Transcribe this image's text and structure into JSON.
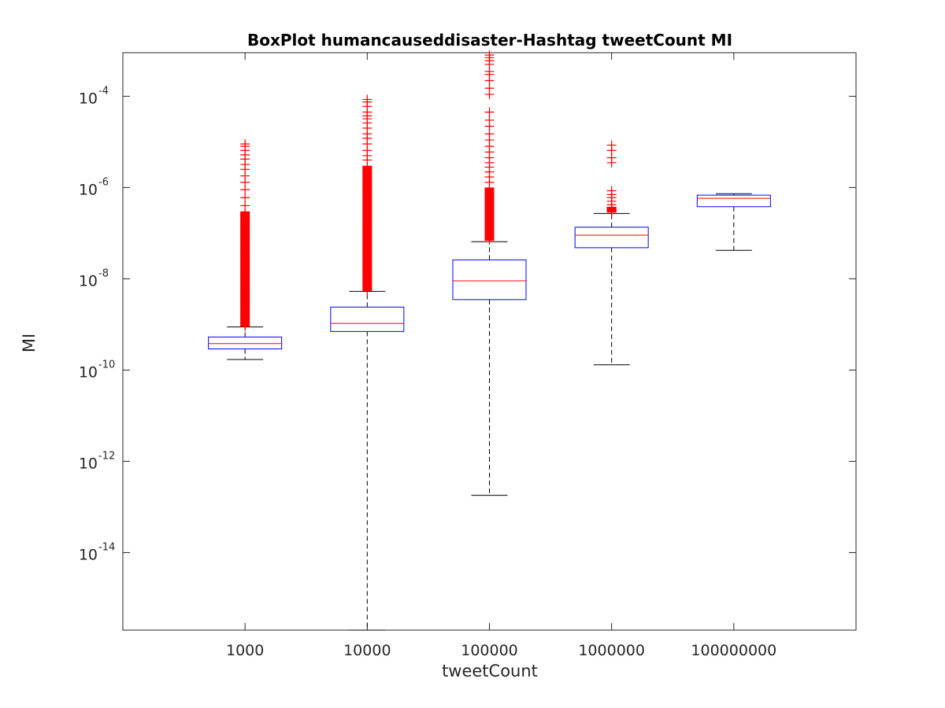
{
  "chart_data": {
    "type": "boxplot",
    "title": "BoxPlot humancauseddisaster-Hashtag tweetCount MI",
    "xlabel": "tweetCount",
    "ylabel": "MI",
    "yscale": "log",
    "ylim": [
      2e-16,
      0.0009
    ],
    "grid": false,
    "legend": "none",
    "categories": [
      "1000",
      "10000",
      "100000",
      "1000000",
      "100000000"
    ],
    "y_ticks": [
      {
        "base": "10",
        "exp": "-14",
        "value": 1e-14
      },
      {
        "base": "10",
        "exp": "-12",
        "value": 1e-12
      },
      {
        "base": "10",
        "exp": "-10",
        "value": 1e-10
      },
      {
        "base": "10",
        "exp": "-8",
        "value": 1e-08
      },
      {
        "base": "10",
        "exp": "-6",
        "value": 1e-06
      },
      {
        "base": "10",
        "exp": "-4",
        "value": 0.0001
      }
    ],
    "boxes": [
      {
        "category": "1000",
        "whisker_low": 1.7e-10,
        "q1": 2.9e-10,
        "median": 3.8e-10,
        "q3": 5.3e-10,
        "whisker_high": 8.8e-10,
        "outliers_range": [
          9e-10,
          9e-06
        ],
        "outliers_dense_until": 3e-07,
        "outliers_sparse": [
          4e-07,
          6e-07,
          9e-07,
          1.3e-06,
          1.8e-06,
          2.5e-06,
          3.2e-06,
          4.2e-06,
          5.2e-06,
          6.5e-06,
          8e-06,
          9e-06
        ]
      },
      {
        "category": "10000",
        "whisker_low": 2e-16,
        "q1": 7e-10,
        "median": 1.05e-09,
        "q3": 2.4e-09,
        "whisker_high": 5.3e-09,
        "outliers_range": [
          5.5e-09,
          8.5e-05
        ],
        "outliers_dense_until": 3e-06,
        "outliers_sparse": [
          4e-06,
          5e-06,
          6.5e-06,
          9e-06,
          1.2e-05,
          1.5e-05,
          2e-05,
          2.6e-05,
          3.2e-05,
          3.7e-05,
          4.5e-05,
          6e-05,
          7.5e-05,
          8.5e-05
        ]
      },
      {
        "category": "100000",
        "whisker_low": 1.8e-13,
        "q1": 3.5e-09,
        "median": 9e-09,
        "q3": 2.6e-08,
        "whisker_high": 6.5e-08,
        "outliers_range": [
          7e-08,
          0.0008
        ],
        "outliers_dense_until": 1e-06,
        "outliers_sparse": [
          1.3e-06,
          1.7e-06,
          2.2e-06,
          2.8e-06,
          3.5e-06,
          4.5e-06,
          6e-06,
          8e-06,
          1.1e-05,
          1.5e-05,
          2.2e-05,
          3e-05,
          4.5e-05,
          0.00011,
          0.00015,
          0.00022,
          0.0003,
          0.00035,
          0.0005,
          0.0006,
          0.0007,
          0.0008
        ]
      },
      {
        "category": "1000000",
        "whisker_low": 1.3e-10,
        "q1": 4.8e-08,
        "median": 9e-08,
        "q3": 1.35e-07,
        "whisker_high": 2.7e-07,
        "outliers_range": [
          2.9e-07,
          9e-06
        ],
        "outliers_dense_until": 3.7e-07,
        "outliers_sparse": [
          2.9e-07,
          3.1e-07,
          3.3e-07,
          3.5e-07,
          3.7e-07,
          4.2e-07,
          5e-07,
          6e-07,
          7e-07,
          8.5e-07,
          3.5e-06,
          4.5e-06,
          6.5e-06,
          8.5e-06
        ]
      },
      {
        "category": "100000000",
        "whisker_low": 4.2e-08,
        "q1": 3.8e-07,
        "median": 5.8e-07,
        "q3": 6.8e-07,
        "whisker_high": 7.3e-07,
        "outliers_range": [],
        "outliers_dense_until": null,
        "outliers_sparse": []
      }
    ],
    "colors": {
      "box": "#0000ff",
      "median": "#ff0000",
      "whisker": "#000000",
      "outlier": "#ff0000",
      "axis": "#262626"
    }
  }
}
